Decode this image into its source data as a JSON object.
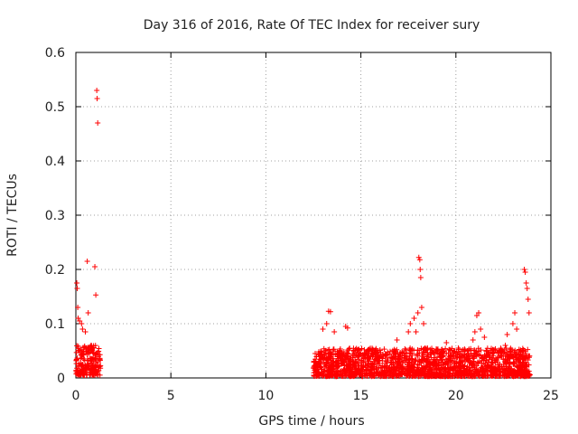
{
  "chart_data": {
    "type": "scatter",
    "title": "Day 316 of 2016, Rate Of TEC Index for receiver sury",
    "xlabel": "GPS time / hours",
    "ylabel": "ROTI / TECUs",
    "xlim": [
      0,
      25
    ],
    "ylim": [
      0,
      0.6
    ],
    "xticks": [
      0,
      5,
      10,
      15,
      20,
      25
    ],
    "xtick_labels": [
      "0",
      "5",
      "10",
      "15",
      "20",
      "25"
    ],
    "yticks": [
      0,
      0.1,
      0.2,
      0.3,
      0.4,
      0.5,
      0.6
    ],
    "ytick_labels": [
      "0",
      "0.1",
      "0.2",
      "0.3",
      "0.4",
      "0.5",
      "0.6"
    ],
    "grid": true,
    "marker": "+",
    "color": "#ff0000",
    "series": [
      {
        "name": "ROTI",
        "points": [
          [
            0.05,
            0.175
          ],
          [
            0.07,
            0.165
          ],
          [
            0.1,
            0.13
          ],
          [
            0.12,
            0.11
          ],
          [
            0.2,
            0.105
          ],
          [
            0.3,
            0.1
          ],
          [
            0.35,
            0.09
          ],
          [
            0.5,
            0.085
          ],
          [
            0.6,
            0.215
          ],
          [
            0.65,
            0.12
          ],
          [
            0.8,
            0.06
          ],
          [
            1.0,
            0.205
          ],
          [
            1.05,
            0.153
          ],
          [
            1.1,
            0.53
          ],
          [
            1.12,
            0.515
          ],
          [
            1.15,
            0.47
          ],
          [
            13.3,
            0.123
          ],
          [
            13.4,
            0.122
          ],
          [
            13.0,
            0.09
          ],
          [
            13.2,
            0.1
          ],
          [
            13.6,
            0.085
          ],
          [
            14.2,
            0.095
          ],
          [
            14.3,
            0.092
          ],
          [
            16.9,
            0.07
          ],
          [
            17.5,
            0.085
          ],
          [
            17.6,
            0.1
          ],
          [
            17.8,
            0.11
          ],
          [
            17.9,
            0.085
          ],
          [
            18.0,
            0.12
          ],
          [
            18.05,
            0.222
          ],
          [
            18.1,
            0.218
          ],
          [
            18.12,
            0.2
          ],
          [
            18.15,
            0.185
          ],
          [
            18.2,
            0.13
          ],
          [
            18.3,
            0.1
          ],
          [
            19.5,
            0.065
          ],
          [
            20.9,
            0.07
          ],
          [
            21.0,
            0.085
          ],
          [
            21.1,
            0.115
          ],
          [
            21.2,
            0.12
          ],
          [
            21.3,
            0.09
          ],
          [
            21.5,
            0.075
          ],
          [
            22.6,
            0.06
          ],
          [
            22.7,
            0.08
          ],
          [
            23.0,
            0.1
          ],
          [
            23.1,
            0.12
          ],
          [
            23.2,
            0.09
          ],
          [
            23.6,
            0.2
          ],
          [
            23.65,
            0.195
          ],
          [
            23.7,
            0.175
          ],
          [
            23.75,
            0.165
          ],
          [
            23.8,
            0.145
          ],
          [
            23.85,
            0.12
          ]
        ]
      }
    ],
    "dense_bands": [
      {
        "x": [
          0.0,
          1.3
        ],
        "y": [
          0.005,
          0.06
        ]
      },
      {
        "x": [
          12.5,
          23.9
        ],
        "y": [
          0.003,
          0.055
        ]
      }
    ]
  }
}
